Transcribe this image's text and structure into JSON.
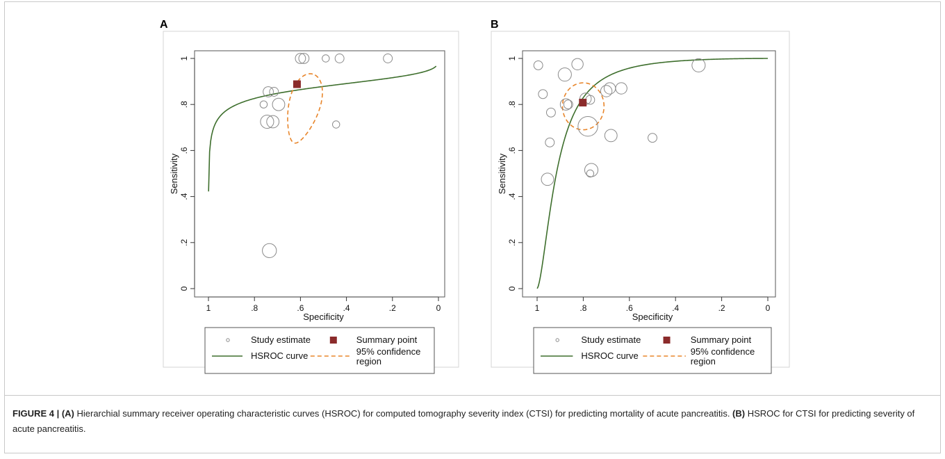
{
  "figure": {
    "caption_label": "FIGURE 4 |",
    "caption_a_marker": "(A)",
    "caption_a_text": " Hierarchial summary receiver operating characteristic curves (HSROC) for computed tomography severity index (CTSI) for predicting mortality of acute pancreatitis. ",
    "caption_b_marker": "(B)",
    "caption_b_text": " HSROC for CTSI for predicting severity of acute pancreatitis."
  },
  "colors": {
    "hsroc_curve": "#3d6e2c",
    "summary_point": "#8b2b2b",
    "confidence_region": "#e8852a",
    "study_circle": "#8a8a8a"
  },
  "chart_data": [
    {
      "type": "scatter",
      "panel_label": "A",
      "xlabel": "Specificity",
      "ylabel": "Sensitivity",
      "xlim": [
        1,
        0
      ],
      "ylim": [
        0,
        1
      ],
      "x_reversed": true,
      "xticks": [
        1,
        0.8,
        0.6,
        0.4,
        0.2,
        0
      ],
      "xtick_labels": [
        "1",
        ".8",
        ".6",
        ".4",
        ".2",
        "0"
      ],
      "yticks": [
        0,
        0.2,
        0.4,
        0.6,
        0.8,
        1
      ],
      "ytick_labels": [
        "0",
        ".2",
        ".4",
        ".6",
        ".8",
        "1"
      ],
      "study_estimates": [
        {
          "x": 0.6,
          "y": 1.0,
          "w": 3
        },
        {
          "x": 0.585,
          "y": 1.0,
          "w": 3
        },
        {
          "x": 0.49,
          "y": 1.0,
          "w": 1
        },
        {
          "x": 0.43,
          "y": 1.0,
          "w": 2
        },
        {
          "x": 0.22,
          "y": 1.0,
          "w": 2
        },
        {
          "x": 0.74,
          "y": 0.855,
          "w": 3
        },
        {
          "x": 0.715,
          "y": 0.855,
          "w": 2
        },
        {
          "x": 0.76,
          "y": 0.8,
          "w": 1
        },
        {
          "x": 0.695,
          "y": 0.8,
          "w": 5
        },
        {
          "x": 0.745,
          "y": 0.725,
          "w": 6
        },
        {
          "x": 0.72,
          "y": 0.725,
          "w": 5
        },
        {
          "x": 0.445,
          "y": 0.713,
          "w": 1
        },
        {
          "x": 0.735,
          "y": 0.165,
          "w": 7
        }
      ],
      "summary_point": {
        "x": 0.615,
        "y": 0.888
      },
      "hsroc_curve": {
        "lambda": 3.6,
        "beta": 1.2,
        "fpr_max": 0.99
      },
      "confidence_region": {
        "cx": 0.59,
        "cy": 0.77,
        "rx": 0.155,
        "ry": 0.065,
        "angle_deg": 75,
        "skew": 0.55
      },
      "legend": {
        "placement": "bottom",
        "study_estimate": "Study estimate",
        "summary_point": "Summary point",
        "hsroc_curve": "HSROC curve",
        "confidence_region_line1": "95% confidence",
        "confidence_region_line2": "region"
      }
    },
    {
      "type": "scatter",
      "panel_label": "B",
      "xlabel": "Specificity",
      "ylabel": "Sensitivity",
      "xlim": [
        1,
        0
      ],
      "ylim": [
        0,
        1
      ],
      "x_reversed": true,
      "xticks": [
        1,
        0.8,
        0.6,
        0.4,
        0.2,
        0
      ],
      "xtick_labels": [
        "1",
        ".8",
        ".6",
        ".4",
        ".2",
        "0"
      ],
      "yticks": [
        0,
        0.2,
        0.4,
        0.6,
        0.8,
        1
      ],
      "ytick_labels": [
        "0",
        ".2",
        ".4",
        ".6",
        ".8",
        "1"
      ],
      "study_estimates": [
        {
          "x": 0.995,
          "y": 0.97,
          "w": 2
        },
        {
          "x": 0.825,
          "y": 0.975,
          "w": 4
        },
        {
          "x": 0.975,
          "y": 0.845,
          "w": 2
        },
        {
          "x": 0.88,
          "y": 0.93,
          "w": 6
        },
        {
          "x": 0.3,
          "y": 0.97,
          "w": 6
        },
        {
          "x": 0.875,
          "y": 0.8,
          "w": 4
        },
        {
          "x": 0.865,
          "y": 0.8,
          "w": 2
        },
        {
          "x": 0.94,
          "y": 0.765,
          "w": 2
        },
        {
          "x": 0.79,
          "y": 0.825,
          "w": 4
        },
        {
          "x": 0.77,
          "y": 0.82,
          "w": 2
        },
        {
          "x": 0.7,
          "y": 0.858,
          "w": 4
        },
        {
          "x": 0.685,
          "y": 0.87,
          "w": 4
        },
        {
          "x": 0.635,
          "y": 0.87,
          "w": 4
        },
        {
          "x": 0.78,
          "y": 0.705,
          "w": 16
        },
        {
          "x": 0.68,
          "y": 0.665,
          "w": 5
        },
        {
          "x": 0.945,
          "y": 0.635,
          "w": 2
        },
        {
          "x": 0.5,
          "y": 0.655,
          "w": 2
        },
        {
          "x": 0.765,
          "y": 0.515,
          "w": 6
        },
        {
          "x": 0.77,
          "y": 0.5,
          "w": 1
        },
        {
          "x": 0.955,
          "y": 0.475,
          "w": 5
        }
      ],
      "summary_point": {
        "x": 0.802,
        "y": 0.808
      },
      "hsroc_curve": {
        "lambda": 3.0,
        "beta": -0.45,
        "fpr_max": 1.0
      },
      "confidence_region": {
        "cx": 0.8,
        "cy": 0.792,
        "rx": 0.09,
        "ry": 0.102,
        "angle_deg": 0,
        "skew": 0
      },
      "legend": {
        "placement": "bottom",
        "study_estimate": "Study estimate",
        "summary_point": "Summary point",
        "hsroc_curve": "HSROC curve",
        "confidence_region_line1": "95% confidence",
        "confidence_region_line2": "region"
      }
    }
  ]
}
